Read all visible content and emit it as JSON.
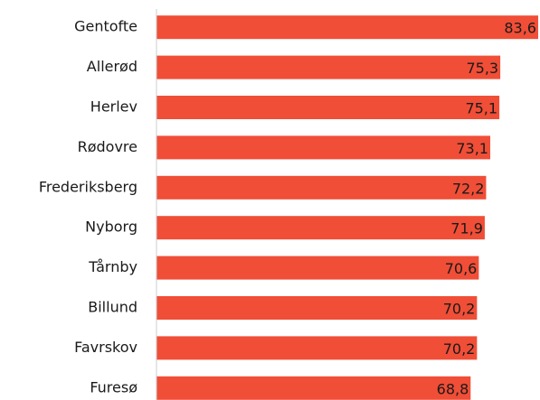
{
  "chart_data": {
    "type": "barh",
    "categories": [
      "Gentofte",
      "Allerød",
      "Herlev",
      "Rødovre",
      "Frederiksberg",
      "Nyborg",
      "Tårnby",
      "Billund",
      "Favrskov",
      "Furesø"
    ],
    "values": [
      83.6,
      75.3,
      75.1,
      73.1,
      72.2,
      71.9,
      70.6,
      70.2,
      70.2,
      68.8
    ],
    "value_labels": [
      "83,6",
      "75,3",
      "75,1",
      "73,1",
      "72,2",
      "71,9",
      "70,6",
      "70,2",
      "70,2",
      "68,8"
    ],
    "color": "#f04e37",
    "xlim": [
      0,
      84
    ]
  }
}
